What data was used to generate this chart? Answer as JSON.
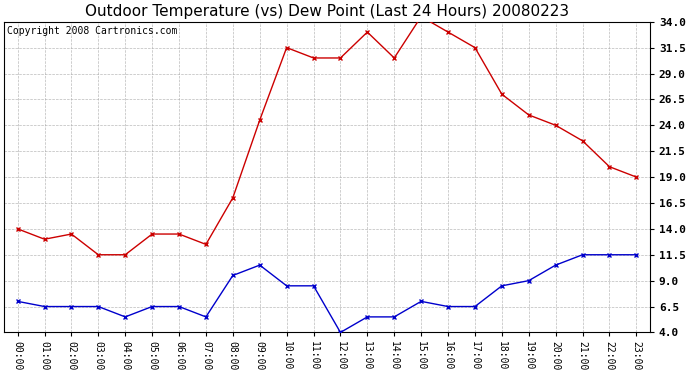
{
  "title": "Outdoor Temperature (vs) Dew Point (Last 24 Hours) 20080223",
  "copyright_text": "Copyright 2008 Cartronics.com",
  "hours": [
    "00:00",
    "01:00",
    "02:00",
    "03:00",
    "04:00",
    "05:00",
    "06:00",
    "07:00",
    "08:00",
    "09:00",
    "10:00",
    "11:00",
    "12:00",
    "13:00",
    "14:00",
    "15:00",
    "16:00",
    "17:00",
    "18:00",
    "19:00",
    "20:00",
    "21:00",
    "22:00",
    "23:00"
  ],
  "temp_red": [
    14.0,
    13.0,
    13.5,
    11.5,
    11.5,
    13.5,
    13.5,
    12.5,
    17.0,
    24.5,
    31.5,
    30.5,
    30.5,
    33.0,
    30.5,
    34.5,
    33.0,
    31.5,
    27.0,
    25.0,
    24.0,
    22.5,
    20.0,
    19.0
  ],
  "dew_blue": [
    7.0,
    6.5,
    6.5,
    6.5,
    5.5,
    6.5,
    6.5,
    5.5,
    9.5,
    10.5,
    8.5,
    8.5,
    4.0,
    5.5,
    5.5,
    7.0,
    6.5,
    6.5,
    8.5,
    9.0,
    10.5,
    11.5,
    11.5,
    11.5
  ],
  "ylim": [
    4.0,
    34.0
  ],
  "yticks": [
    4.0,
    6.5,
    9.0,
    11.5,
    14.0,
    16.5,
    19.0,
    21.5,
    24.0,
    26.5,
    29.0,
    31.5,
    34.0
  ],
  "red_color": "#cc0000",
  "blue_color": "#0000cc",
  "grid_color": "#aaaaaa",
  "bg_color": "#ffffff",
  "title_fontsize": 11,
  "copyright_fontsize": 7,
  "tick_fontsize": 8,
  "xtick_fontsize": 7
}
